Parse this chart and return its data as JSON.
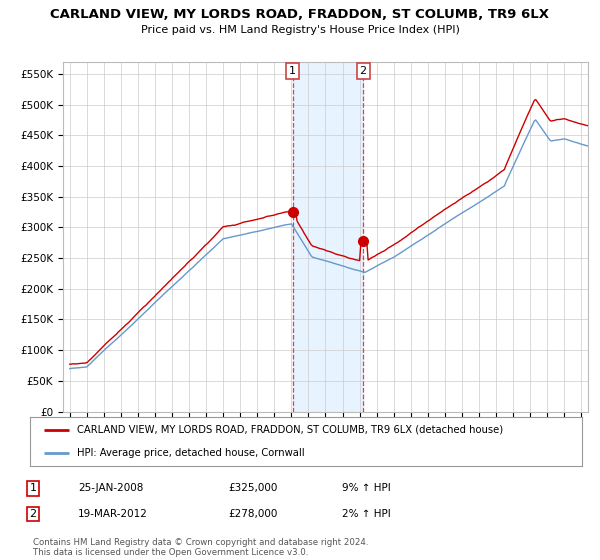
{
  "title": "CARLAND VIEW, MY LORDS ROAD, FRADDON, ST COLUMB, TR9 6LX",
  "subtitle": "Price paid vs. HM Land Registry's House Price Index (HPI)",
  "yticks": [
    0,
    50000,
    100000,
    150000,
    200000,
    250000,
    300000,
    350000,
    400000,
    450000,
    500000,
    550000
  ],
  "ytick_labels": [
    "£0",
    "£50K",
    "£100K",
    "£150K",
    "£200K",
    "£250K",
    "£300K",
    "£350K",
    "£400K",
    "£450K",
    "£500K",
    "£550K"
  ],
  "sale1_date": 2008.07,
  "sale1_price": 325000,
  "sale2_date": 2012.21,
  "sale2_price": 278000,
  "line_color_red": "#cc0000",
  "line_color_blue": "#6699cc",
  "shade_color": "#ddeeff",
  "legend_line1": "CARLAND VIEW, MY LORDS ROAD, FRADDON, ST COLUMB, TR9 6LX (detached house)",
  "legend_line2": "HPI: Average price, detached house, Cornwall",
  "footnote": "Contains HM Land Registry data © Crown copyright and database right 2024.\nThis data is licensed under the Open Government Licence v3.0.",
  "background_color": "#ffffff",
  "grid_color": "#cccccc"
}
